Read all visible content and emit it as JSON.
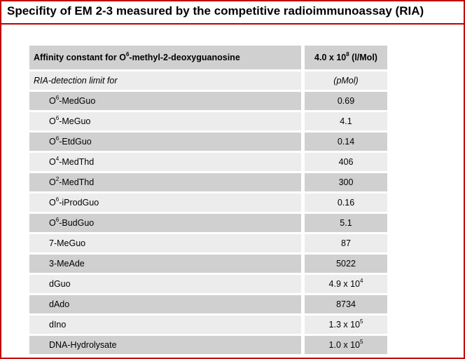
{
  "title": "Specifity of EM 2-3 measured by the competitive radioimmunoassay (RIA)",
  "header": {
    "label_pre": "Affinity constant for O",
    "label_sup": "6",
    "label_post": "-methyl-2-deoxyguanosine",
    "value_pre": "4.0 x 10",
    "value_sup": "8",
    "value_post": " (l/Mol)"
  },
  "subheader": {
    "label": "RIA-detection limit for",
    "unit": "(pMol)"
  },
  "rows": [
    {
      "pre": "O",
      "sup": "6",
      "post": "-MedGuo",
      "value": "0.69",
      "value_sup": ""
    },
    {
      "pre": "O",
      "sup": "6",
      "post": "-MeGuo",
      "value": "4.1",
      "value_sup": ""
    },
    {
      "pre": "O",
      "sup": "6",
      "post": "-EtdGuo",
      "value": "0.14",
      "value_sup": ""
    },
    {
      "pre": "O",
      "sup": "4",
      "post": "-MedThd",
      "value": "406",
      "value_sup": ""
    },
    {
      "pre": "O",
      "sup": "2",
      "post": "-MedThd",
      "value": "300",
      "value_sup": ""
    },
    {
      "pre": "O",
      "sup": "6",
      "post": "-iProdGuo",
      "value": "0.16",
      "value_sup": ""
    },
    {
      "pre": "O",
      "sup": "6",
      "post": "-BudGuo",
      "value": "5.1",
      "value_sup": ""
    },
    {
      "pre": "7-MeGuo",
      "sup": "",
      "post": "",
      "value": "87",
      "value_sup": ""
    },
    {
      "pre": "3-MeAde",
      "sup": "",
      "post": "",
      "value": "5022",
      "value_sup": ""
    },
    {
      "pre": "dGuo",
      "sup": "",
      "post": "",
      "value": "4.9 x 10",
      "value_sup": "4"
    },
    {
      "pre": "dAdo",
      "sup": "",
      "post": "",
      "value": "8734",
      "value_sup": ""
    },
    {
      "pre": "dIno",
      "sup": "",
      "post": "",
      "value": "1.3 x 10",
      "value_sup": "5"
    },
    {
      "pre": "DNA-Hydrolysate",
      "sup": "",
      "post": "",
      "value": "1.0 x 10",
      "value_sup": "5"
    }
  ],
  "colors": {
    "frame": "#c00000",
    "cell_dark": "#d0d0d0",
    "cell_light": "#ececec"
  }
}
